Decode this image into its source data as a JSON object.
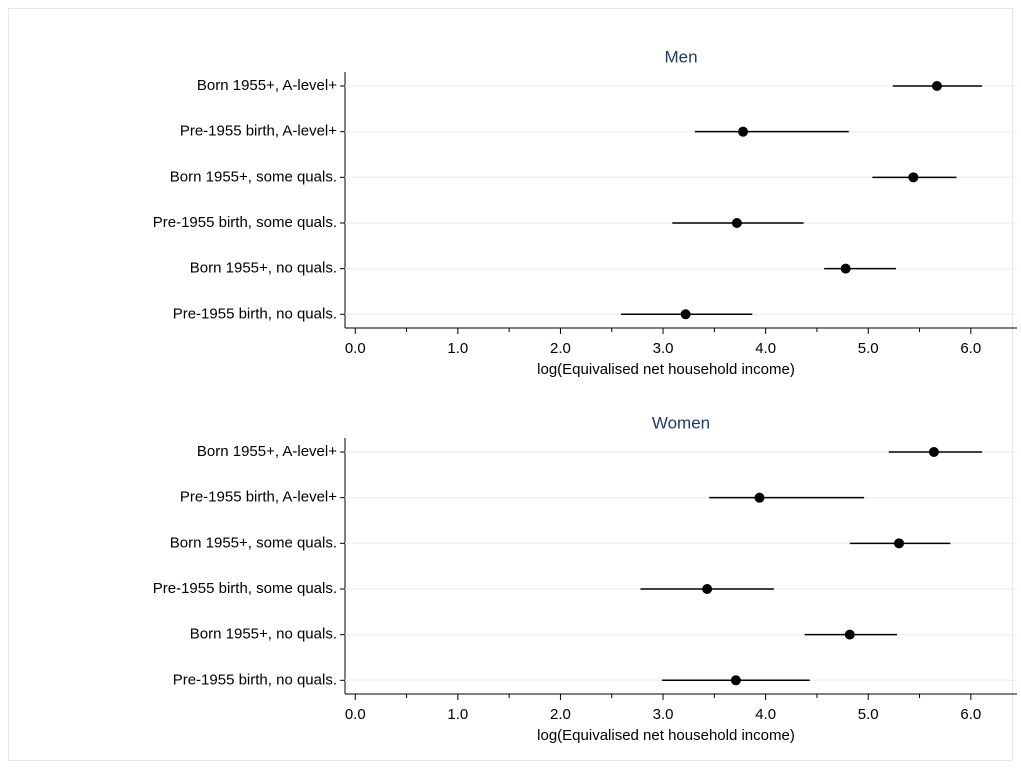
{
  "chart_data": [
    {
      "type": "dot",
      "title": "Men",
      "categories": [
        "Born 1955+, A-level+",
        "Pre-1955 birth, A-level+",
        "Born 1955+, some quals.",
        "Pre-1955 birth, some quals.",
        "Born 1955+, no quals.",
        "Pre-1955 birth, no quals."
      ],
      "values": [
        5.67,
        3.78,
        5.44,
        3.72,
        4.78,
        3.22
      ],
      "lower": [
        5.24,
        3.31,
        5.04,
        3.09,
        4.57,
        2.59
      ],
      "upper": [
        6.11,
        4.81,
        5.86,
        4.37,
        5.27,
        3.87
      ],
      "xlim": [
        -0.1,
        6.45
      ],
      "xticks": [
        {
          "value": 0,
          "label": "0.0"
        },
        {
          "value": 1,
          "label": "1.0"
        },
        {
          "value": 2,
          "label": "2.0"
        },
        {
          "value": 3,
          "label": "3.0"
        },
        {
          "value": 4,
          "label": "4.0"
        },
        {
          "value": 5,
          "label": "5.0"
        },
        {
          "value": 6,
          "label": "6.0"
        }
      ],
      "xminorticks": [
        0.5,
        1.5,
        2.5,
        3.5,
        4.5,
        5.5
      ],
      "xlabel": "log(Equivalised net household income)",
      "color": "#000000",
      "grid": true
    },
    {
      "type": "dot",
      "title": "Women",
      "categories": [
        "Born 1955+, A-level+",
        "Pre-1955 birth, A-level+",
        "Born 1955+, some quals.",
        "Pre-1955 birth, some quals.",
        "Born 1955+, no quals.",
        "Pre-1955 birth, no quals."
      ],
      "values": [
        5.64,
        3.94,
        5.3,
        3.43,
        4.82,
        3.71
      ],
      "lower": [
        5.2,
        3.45,
        4.82,
        2.78,
        4.38,
        2.99
      ],
      "upper": [
        6.11,
        4.96,
        5.8,
        4.08,
        5.28,
        4.43
      ],
      "xlim": [
        -0.1,
        6.45
      ],
      "xticks": [
        {
          "value": 0,
          "label": "0.0"
        },
        {
          "value": 1,
          "label": "1.0"
        },
        {
          "value": 2,
          "label": "2.0"
        },
        {
          "value": 3,
          "label": "3.0"
        },
        {
          "value": 4,
          "label": "4.0"
        },
        {
          "value": 5,
          "label": "5.0"
        },
        {
          "value": 6,
          "label": "6.0"
        }
      ],
      "xminorticks": [
        0.5,
        1.5,
        2.5,
        3.5,
        4.5,
        5.5
      ],
      "xlabel": "log(Equivalised net household income)",
      "color": "#000000",
      "grid": true
    }
  ]
}
